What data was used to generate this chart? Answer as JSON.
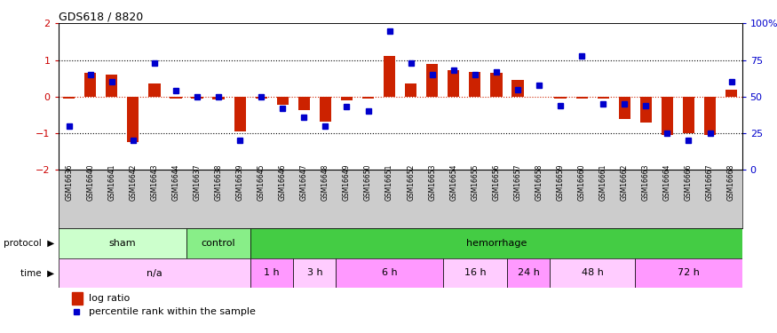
{
  "title": "GDS618 / 8820",
  "samples": [
    "GSM16636",
    "GSM16640",
    "GSM16641",
    "GSM16642",
    "GSM16643",
    "GSM16644",
    "GSM16637",
    "GSM16638",
    "GSM16639",
    "GSM16645",
    "GSM16646",
    "GSM16647",
    "GSM16648",
    "GSM16649",
    "GSM16650",
    "GSM16651",
    "GSM16652",
    "GSM16653",
    "GSM16654",
    "GSM16655",
    "GSM16656",
    "GSM16657",
    "GSM16658",
    "GSM16659",
    "GSM16660",
    "GSM16661",
    "GSM16662",
    "GSM16663",
    "GSM16664",
    "GSM16666",
    "GSM16667",
    "GSM16668"
  ],
  "log_ratio": [
    -0.05,
    0.65,
    0.6,
    -1.25,
    0.35,
    -0.05,
    -0.05,
    -0.08,
    -0.95,
    -0.05,
    -0.22,
    -0.38,
    -0.68,
    -0.1,
    -0.05,
    1.1,
    0.35,
    0.9,
    0.72,
    0.68,
    0.65,
    0.45,
    0.0,
    -0.05,
    -0.05,
    -0.05,
    -0.62,
    -0.72,
    -1.05,
    -1.0,
    -1.05,
    0.18
  ],
  "percentile": [
    30,
    65,
    60,
    20,
    73,
    54,
    50,
    50,
    20,
    50,
    42,
    36,
    30,
    43,
    40,
    95,
    73,
    65,
    68,
    65,
    67,
    55,
    58,
    44,
    78,
    45,
    45,
    44,
    25,
    20,
    25,
    60
  ],
  "protocol_groups": [
    {
      "label": "sham",
      "start": 0,
      "end": 6,
      "color": "#ccffcc"
    },
    {
      "label": "control",
      "start": 6,
      "end": 9,
      "color": "#88ee88"
    },
    {
      "label": "hemorrhage",
      "start": 9,
      "end": 32,
      "color": "#44cc44"
    }
  ],
  "time_groups": [
    {
      "label": "n/a",
      "start": 0,
      "end": 9,
      "color": "#ffccff"
    },
    {
      "label": "1 h",
      "start": 9,
      "end": 11,
      "color": "#ff99ff"
    },
    {
      "label": "3 h",
      "start": 11,
      "end": 13,
      "color": "#ffccff"
    },
    {
      "label": "6 h",
      "start": 13,
      "end": 18,
      "color": "#ff99ff"
    },
    {
      "label": "16 h",
      "start": 18,
      "end": 21,
      "color": "#ffccff"
    },
    {
      "label": "24 h",
      "start": 21,
      "end": 23,
      "color": "#ff99ff"
    },
    {
      "label": "48 h",
      "start": 23,
      "end": 27,
      "color": "#ffccff"
    },
    {
      "label": "72 h",
      "start": 27,
      "end": 32,
      "color": "#ff99ff"
    }
  ],
  "ylim": [
    -2.0,
    2.0
  ],
  "yticks": [
    -2,
    -1,
    0,
    1,
    2
  ],
  "right_yticks": [
    0,
    25,
    50,
    75,
    100
  ],
  "right_yticklabels": [
    "0",
    "25",
    "50",
    "75",
    "100%"
  ],
  "bar_color": "#cc2200",
  "dot_color": "#0000cc",
  "background_color": "#ffffff",
  "tick_label_color_left": "#cc0000",
  "tick_label_color_right": "#0000cc",
  "sample_band_color": "#cccccc",
  "bar_width": 0.55
}
